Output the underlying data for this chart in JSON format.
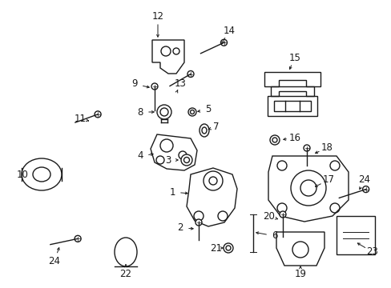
{
  "bg_color": "#ffffff",
  "line_color": "#1a1a1a",
  "lw": 1.0,
  "label_fontsize": 8.5,
  "figsize": [
    4.89,
    3.6
  ],
  "dpi": 100
}
